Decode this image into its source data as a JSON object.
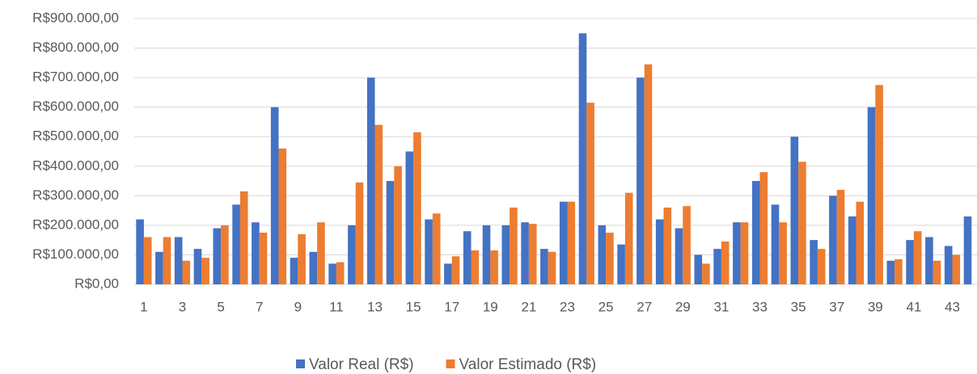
{
  "chart_data": {
    "type": "bar",
    "categories": [
      "1",
      null,
      "3",
      null,
      "5",
      null,
      "7",
      null,
      "9",
      null,
      "11",
      null,
      "13",
      null,
      "15",
      null,
      "17",
      null,
      "19",
      null,
      "21",
      null,
      "23",
      null,
      "25",
      null,
      "27",
      null,
      "29",
      null,
      "31",
      null,
      "33",
      null,
      "35",
      null,
      "37",
      null,
      "39",
      null,
      "41",
      null,
      "43",
      null
    ],
    "series": [
      {
        "name": "Valor Real (R$)",
        "color": "#4472c4",
        "values": [
          220000,
          110000,
          160000,
          120000,
          190000,
          270000,
          210000,
          600000,
          90000,
          110000,
          70000,
          200000,
          700000,
          350000,
          450000,
          220000,
          70000,
          180000,
          200000,
          200000,
          210000,
          120000,
          280000,
          850000,
          200000,
          135000,
          700000,
          220000,
          190000,
          100000,
          120000,
          210000,
          350000,
          270000,
          500000,
          150000,
          300000,
          230000,
          600000,
          80000,
          150000,
          160000,
          130000,
          230000
        ]
      },
      {
        "name": "Valor Estimado (R$)",
        "color": "#ed7d31",
        "values": [
          160000,
          160000,
          80000,
          90000,
          200000,
          315000,
          175000,
          460000,
          170000,
          210000,
          75000,
          345000,
          540000,
          400000,
          515000,
          240000,
          95000,
          115000,
          115000,
          260000,
          205000,
          110000,
          280000,
          615000,
          175000,
          310000,
          745000,
          260000,
          265000,
          70000,
          145000,
          210000,
          380000,
          210000,
          415000,
          120000,
          320000,
          280000,
          675000,
          85000,
          180000,
          80000,
          100000,
          null
        ]
      }
    ],
    "ylim": [
      0,
      900000
    ],
    "yticks": [
      {
        "value": 0,
        "label": "R$0,00"
      },
      {
        "value": 100000,
        "label": "R$100.000,00"
      },
      {
        "value": 200000,
        "label": "R$200.000,00"
      },
      {
        "value": 300000,
        "label": "R$300.000,00"
      },
      {
        "value": 400000,
        "label": "R$400.000,00"
      },
      {
        "value": 500000,
        "label": "R$500.000,00"
      },
      {
        "value": 600000,
        "label": "R$600.000,00"
      },
      {
        "value": 700000,
        "label": "R$700.000,00"
      },
      {
        "value": 800000,
        "label": "R$800.000,00"
      },
      {
        "value": 900000,
        "label": "R$900.000,00"
      }
    ],
    "grid": true,
    "legend": "bottom"
  }
}
